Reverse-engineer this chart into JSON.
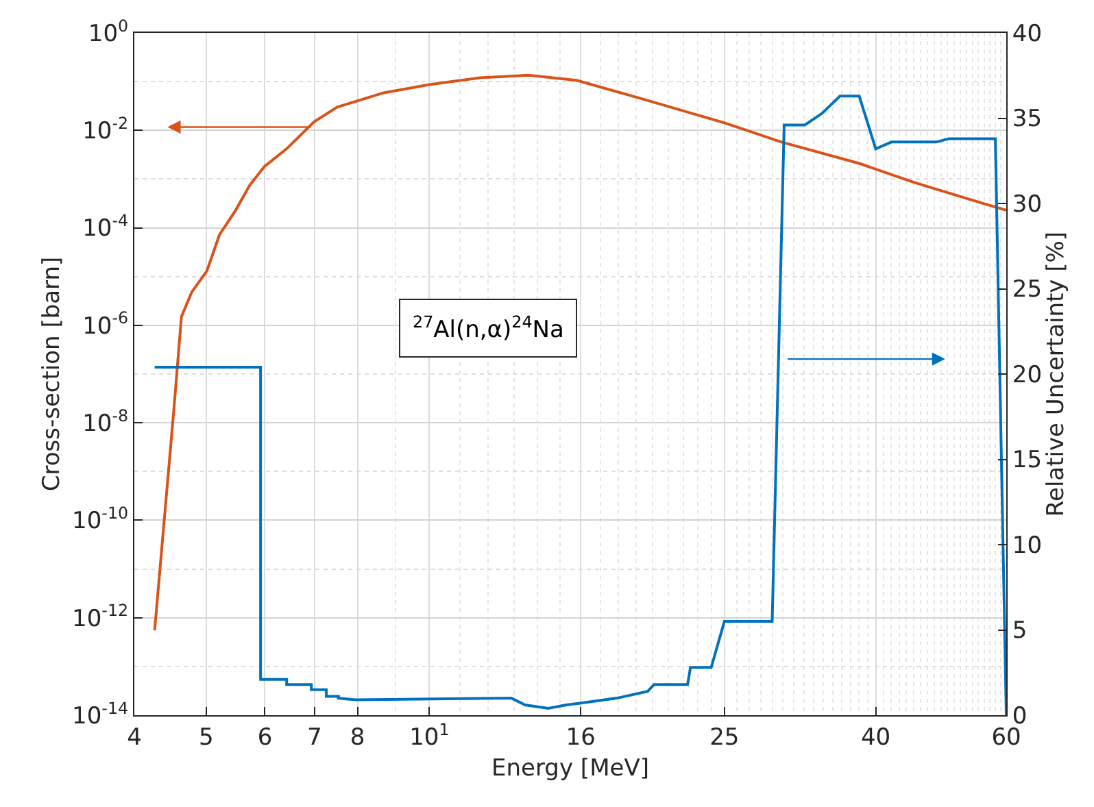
{
  "chart_data": {
    "type": "line",
    "xlabel": "Energy [MeV]",
    "ylabel": "Cross-section [barn]",
    "y2label": "Relative Uncertainty [%]",
    "annotations": [
      "$^{27}$Al(n,α)$^{24}$Na"
    ],
    "log": "xy",
    "grid": true,
    "marker": "none",
    "line_style": "solid",
    "xlim": [
      4,
      60
    ],
    "xticks": [
      4,
      5,
      6,
      7,
      8,
      {
        "value": 10,
        "label": "10$^{1}$"
      },
      16,
      25,
      40,
      60
    ],
    "ylim": [
      1e-14,
      1
    ],
    "yticks": [
      {
        "value": 1e-14,
        "label": "10$^{-14}$"
      },
      {
        "value": 1e-12,
        "label": "10$^{-12}$"
      },
      {
        "value": 1e-10,
        "label": "10$^{-10}$"
      },
      {
        "value": 1e-08,
        "label": "10$^{-8}$"
      },
      {
        "value": 1e-06,
        "label": "10$^{-6}$"
      },
      {
        "value": 0.0001,
        "label": "10$^{-4}$"
      },
      {
        "value": 0.01,
        "label": "10$^{-2}$"
      },
      {
        "value": 1,
        "label": "10$^{0}$"
      }
    ],
    "y2lim": [
      0,
      40
    ],
    "y2ticks": [
      0,
      5,
      10,
      15,
      20,
      25,
      30,
      35,
      40
    ],
    "series": [
      {
        "color": "#d95319",
        "x": [
          4.26,
          4.52,
          4.63,
          4.78,
          5.01,
          5.21,
          5.48,
          5.72,
          5.99,
          6.42,
          6.99,
          7.51,
          8.68,
          10,
          11.7,
          13.6,
          15.8,
          19.2,
          25.1,
          29.8,
          38.0,
          45.1,
          55.7,
          60
        ],
        "values": [
          5.5e-13,
          1.7e-08,
          1.5e-06,
          4.8e-06,
          1.3e-05,
          7.2e-05,
          0.00023,
          0.00074,
          0.0018,
          0.0042,
          0.015,
          0.03,
          0.059,
          0.087,
          0.12,
          0.135,
          0.106,
          0.046,
          0.014,
          0.0058,
          0.0021,
          0.00085,
          0.00032,
          0.00023
        ]
      },
      {
        "color": "#0072bd",
        "axis": "y2",
        "x": [
          4.26,
          5.92,
          5.92,
          6.42,
          6.42,
          6.93,
          6.93,
          7.26,
          7.26,
          7.54,
          7.54,
          7.97,
          12.9,
          13.46,
          14.47,
          15.3,
          15.96,
          17.9,
          19.7,
          20.1,
          22.3,
          22.5,
          24.0,
          25.0,
          29.0,
          30.1,
          32.1,
          33.9,
          35.8,
          38.0,
          40.0,
          42.0,
          48.3,
          50.2,
          58.0,
          60
        ],
        "values": [
          20.4,
          20.4,
          2.1,
          2.1,
          1.8,
          1.8,
          1.5,
          1.5,
          1.1,
          1.1,
          1.0,
          0.9,
          1.0,
          0.6,
          0.4,
          0.6,
          0.7,
          1.0,
          1.4,
          1.8,
          1.8,
          2.8,
          2.8,
          5.5,
          5.5,
          34.6,
          34.6,
          35.3,
          36.3,
          36.3,
          33.2,
          33.6,
          33.6,
          33.8,
          33.8,
          0
        ]
      }
    ]
  }
}
